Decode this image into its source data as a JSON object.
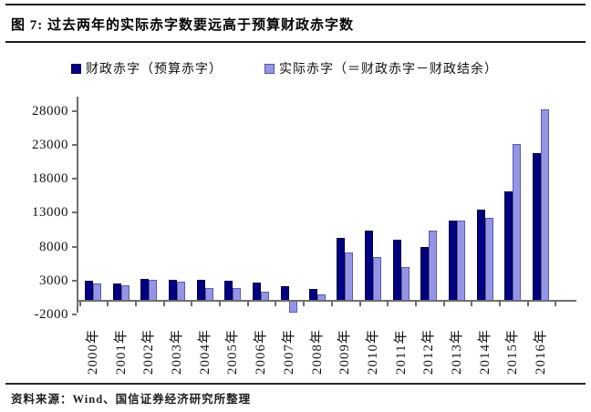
{
  "title": "图 7: 过去两年的实际赤字数要远高于预算财政赤字数",
  "legend": {
    "items": [
      {
        "label": "财政赤字（预算赤字）",
        "color": "#000080"
      },
      {
        "label": "实际赤字（＝财政赤字－财政结余）",
        "color": "#9595e8"
      }
    ]
  },
  "source": "资料来源：Wind、国信证券经济研究所整理",
  "chart_data": {
    "type": "bar",
    "title": "过去两年的实际赤字数要远高于预算财政赤字数",
    "unit_note": "亿元 (implied, not labeled on chart)",
    "categories": [
      "2000年",
      "2001年",
      "2002年",
      "2003年",
      "2004年",
      "2005年",
      "2006年",
      "2007年",
      "2008年",
      "2009年",
      "2010年",
      "2011年",
      "2012年",
      "2013年",
      "2014年",
      "2015年",
      "2016年"
    ],
    "series": [
      {
        "name": "财政赤字（预算赤字）",
        "color": "#000080",
        "values": [
          2900,
          2600,
          3200,
          3100,
          3100,
          2900,
          2700,
          2200,
          1700,
          9300,
          10400,
          9000,
          7900,
          11900,
          13500,
          16200,
          21800
        ]
      },
      {
        "name": "实际赤字（＝财政赤字－财政结余）",
        "color": "#9595e8",
        "values": [
          2500,
          2300,
          3100,
          2800,
          1900,
          1900,
          1300,
          -1800,
          900,
          7200,
          6400,
          5000,
          10400,
          11900,
          12200,
          23100,
          28300
        ]
      }
    ],
    "xlabel": "",
    "ylabel": "",
    "ylim": [
      -2000,
      28000
    ],
    "yticks": [
      28000,
      23000,
      18000,
      13000,
      8000,
      3000,
      -2000
    ],
    "grid": false,
    "legend_position": "top"
  }
}
